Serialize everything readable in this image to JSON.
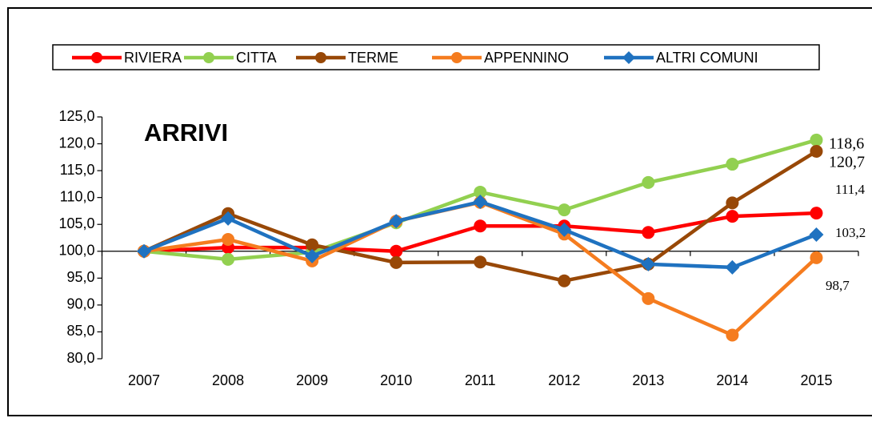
{
  "chart_data": {
    "type": "line",
    "title": "ARRIVI",
    "categories": [
      "2007",
      "2008",
      "2009",
      "2010",
      "2011",
      "2012",
      "2013",
      "2014",
      "2015"
    ],
    "series": [
      {
        "name": "RIVIERA",
        "color": "#ff0000",
        "marker": "circle",
        "values": [
          100.0,
          100.7,
          100.7,
          100.0,
          104.7,
          104.7,
          103.5,
          106.5,
          107.1
        ]
      },
      {
        "name": "CITTA",
        "color": "#92d050",
        "marker": "circle",
        "values": [
          100.0,
          98.5,
          99.8,
          105.3,
          111.0,
          107.7,
          112.8,
          116.2,
          120.7
        ]
      },
      {
        "name": "TERME",
        "color": "#984807",
        "marker": "circle",
        "values": [
          100.0,
          107.0,
          101.2,
          97.9,
          98.0,
          94.5,
          97.6,
          109.0,
          118.6
        ]
      },
      {
        "name": "APPENNINO",
        "color": "#f57c1f",
        "marker": "circle",
        "values": [
          100.0,
          102.2,
          98.2,
          105.6,
          109.1,
          103.2,
          91.2,
          84.4,
          98.8
        ]
      },
      {
        "name": "ALTRI COMUNI",
        "color": "#1f72c0",
        "marker": "diamond",
        "values": [
          100.0,
          106.1,
          99.1,
          105.6,
          109.2,
          104.0,
          97.6,
          97.0,
          103.1
        ]
      }
    ],
    "ylim": [
      80,
      125
    ],
    "yticks": [
      {
        "value": 80,
        "label": "80,0"
      },
      {
        "value": 85,
        "label": "85,0"
      },
      {
        "value": 90,
        "label": "90,0"
      },
      {
        "value": 95,
        "label": "95,0"
      },
      {
        "value": 100,
        "label": "100,0"
      },
      {
        "value": 105,
        "label": "105,0"
      },
      {
        "value": 110,
        "label": "110,0"
      },
      {
        "value": 115,
        "label": "115,0"
      },
      {
        "value": 120,
        "label": "120,0"
      },
      {
        "value": 125,
        "label": "125,0"
      }
    ],
    "x_axis_crosses": 100,
    "annotations": [
      "118,6",
      "120,7",
      "111,4",
      "103,2",
      "98,7"
    ],
    "legend": "top"
  }
}
